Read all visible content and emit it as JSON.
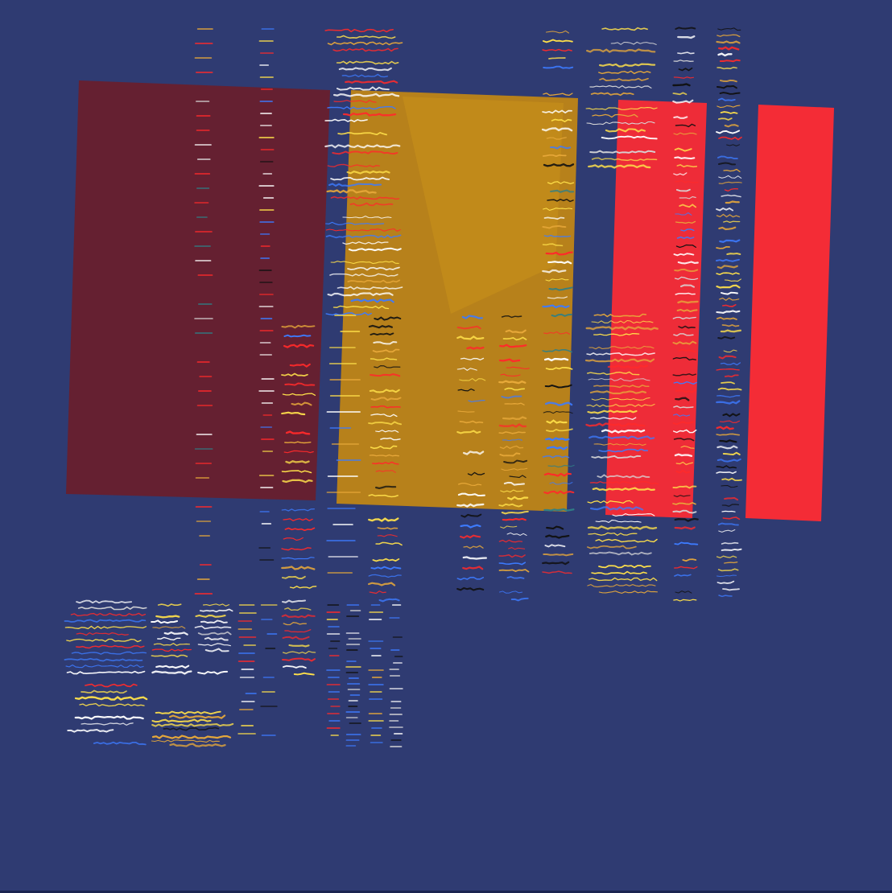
{
  "artwork": {
    "background_color": "#2f3b72",
    "panel_colors": {
      "maroon_panel": "#6b1e2a",
      "amber_panel": "#c68a12",
      "red_panel_left": "#ff2b33",
      "red_panel_right": "#ff2b33"
    },
    "stroke_palette": [
      "#ffffff",
      "#ff2a2a",
      "#3d7bff",
      "#ffe14a",
      "#e8a93a",
      "#111111",
      "#2f7f86",
      "#d8d8d8"
    ]
  }
}
